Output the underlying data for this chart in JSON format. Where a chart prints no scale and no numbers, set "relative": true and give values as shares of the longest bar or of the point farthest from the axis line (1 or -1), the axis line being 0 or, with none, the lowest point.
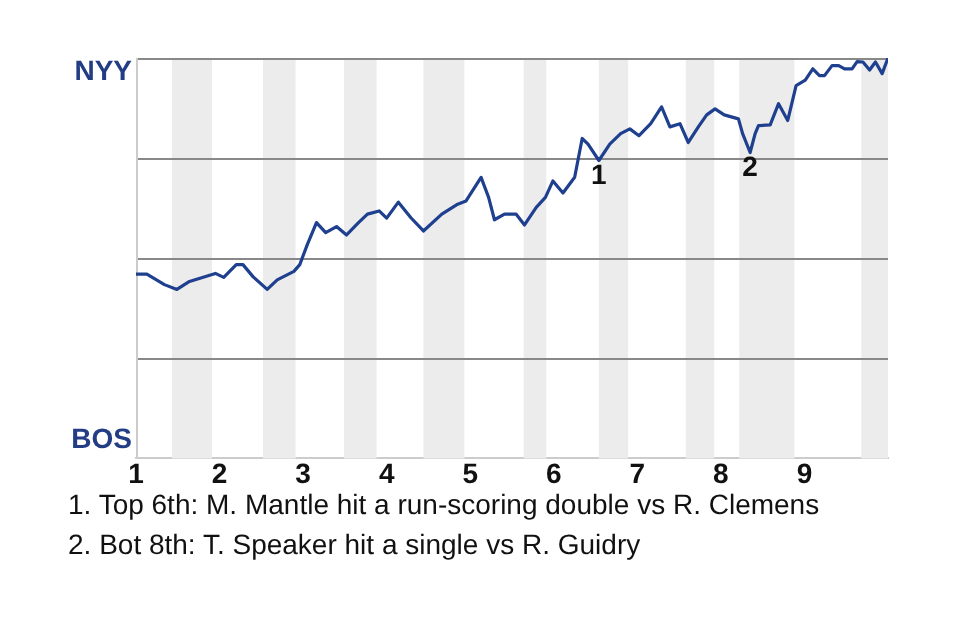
{
  "chart_data": {
    "type": "line",
    "relative": true,
    "x": [
      1,
      1.13,
      1.34,
      1.49,
      1.64,
      1.95,
      2.05,
      2.2,
      2.28,
      2.4,
      2.57,
      2.69,
      2.89,
      2.96,
      3.05,
      3.16,
      3.27,
      3.4,
      3.52,
      3.66,
      3.77,
      3.91,
      4.0,
      4.14,
      4.29,
      4.44,
      4.66,
      4.85,
      4.95,
      5.13,
      5.22,
      5.29,
      5.41,
      5.55,
      5.65,
      5.79,
      5.9,
      5.99,
      6.11,
      6.25,
      6.34,
      6.41,
      6.54,
      6.67,
      6.8,
      6.91,
      7.02,
      7.16,
      7.29,
      7.39,
      7.51,
      7.61,
      7.73,
      7.83,
      7.93,
      8.04,
      8.21,
      8.26,
      8.35,
      8.41,
      8.45,
      8.59,
      8.69,
      8.8,
      8.9,
      9.01,
      9.1,
      9.18,
      9.24,
      9.33,
      9.41,
      9.48,
      9.57,
      9.63,
      9.7,
      9.78,
      9.85,
      9.93,
      10
    ],
    "series": [
      {
        "color": "#1f3f8f",
        "values": [
          0.46,
          0.46,
          0.434,
          0.422,
          0.442,
          0.462,
          0.452,
          0.484,
          0.484,
          0.454,
          0.422,
          0.446,
          0.467,
          0.484,
          0.534,
          0.589,
          0.564,
          0.579,
          0.558,
          0.588,
          0.61,
          0.618,
          0.6,
          0.64,
          0.601,
          0.568,
          0.61,
          0.635,
          0.643,
          0.702,
          0.652,
          0.596,
          0.61,
          0.61,
          0.583,
          0.627,
          0.652,
          0.693,
          0.663,
          0.702,
          0.799,
          0.785,
          0.744,
          0.785,
          0.811,
          0.823,
          0.806,
          0.836,
          0.878,
          0.828,
          0.836,
          0.789,
          0.828,
          0.858,
          0.873,
          0.858,
          0.848,
          0.811,
          0.764,
          0.811,
          0.831,
          0.833,
          0.886,
          0.844,
          0.931,
          0.945,
          0.973,
          0.956,
          0.956,
          0.981,
          0.981,
          0.973,
          0.973,
          0.991,
          0.99,
          0.97,
          0.99,
          0.961,
          1
        ]
      }
    ],
    "xlim": [
      1,
      10
    ],
    "xticks": [
      1,
      2,
      3,
      4,
      5,
      6,
      7,
      8,
      9
    ],
    "grid": false,
    "legend": false,
    "marker": "none",
    "line_style": "solid",
    "ref_lines": [
      {
        "axis": "y",
        "value": 0.25,
        "color": "#888888"
      },
      {
        "axis": "y",
        "value": 0.5,
        "color": "#888888"
      },
      {
        "axis": "y",
        "value": 0.75,
        "color": "#888888"
      },
      {
        "axis": "y",
        "value": 1,
        "color": "#888888"
      }
    ],
    "bands": [
      {
        "axis": "x",
        "from": 1.43,
        "to": 1.91,
        "color": "#ececec"
      },
      {
        "axis": "x",
        "from": 2.52,
        "to": 2.91,
        "color": "#ececec"
      },
      {
        "axis": "x",
        "from": 3.49,
        "to": 3.88,
        "color": "#ececec"
      },
      {
        "axis": "x",
        "from": 4.44,
        "to": 4.93,
        "color": "#ececec"
      },
      {
        "axis": "x",
        "from": 5.64,
        "to": 5.91,
        "color": "#ececec"
      },
      {
        "axis": "x",
        "from": 6.54,
        "to": 6.89,
        "color": "#ececec"
      },
      {
        "axis": "x",
        "from": 7.58,
        "to": 7.92,
        "color": "#ececec"
      },
      {
        "axis": "x",
        "from": 8.22,
        "to": 8.88,
        "color": "#ececec"
      },
      {
        "axis": "x",
        "from": 9.68,
        "to": 10,
        "color": "#ececec"
      }
    ],
    "annotations": [
      "NYY",
      "BOS",
      {
        "text": "1",
        "x": 6.54,
        "y": 0.744
      },
      {
        "text": "2",
        "x": 8.35,
        "y": 0.764
      },
      "1. Top 6th: M. Mantle hit a run-scoring double vs R. Clemens",
      "2. Bot 8th: T. Speaker hit a single vs R. Guidry"
    ]
  }
}
